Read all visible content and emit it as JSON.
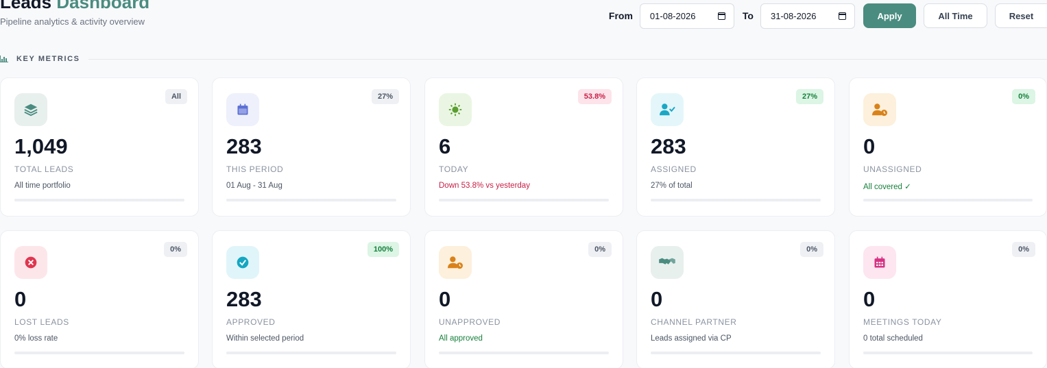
{
  "header": {
    "title_main": "Leads",
    "title_accent": "Dashboard",
    "subtitle": "Pipeline analytics & activity overview"
  },
  "filters": {
    "from_label": "From",
    "from_value": "01-08-2026",
    "to_label": "To",
    "to_value": "31-08-2026",
    "apply_label": "Apply",
    "all_time_label": "All Time",
    "reset_label": "Reset"
  },
  "section": {
    "title": "KEY METRICS"
  },
  "metrics": [
    {
      "value": "1,049",
      "label": "TOTAL LEADS",
      "desc": "All time portfolio",
      "badge": "All",
      "icon": "layers-icon",
      "icon_bg": "#e8f0ee",
      "icon_color": "#4a8c80",
      "badge_bg": "#eef0f4",
      "badge_color": "#4b5563"
    },
    {
      "value": "283",
      "label": "THIS PERIOD",
      "desc": "01 Aug - 31 Aug",
      "badge": "27%",
      "icon": "calendar-icon",
      "icon_bg": "#eef0fb",
      "icon_color": "#5b6fd6",
      "badge_bg": "#eef0f4",
      "badge_color": "#4b5563"
    },
    {
      "value": "6",
      "label": "TODAY",
      "desc": "Down 53.8% vs yesterday",
      "badge": "53.8%",
      "icon": "sun-icon",
      "icon_bg": "#eaf6e3",
      "icon_color": "#5a9e2f",
      "badge_bg": "#fde4ea",
      "badge_color": "#c81e45"
    },
    {
      "value": "283",
      "label": "ASSIGNED",
      "desc": "27% of total",
      "badge": "27%",
      "icon": "user-check-icon",
      "icon_bg": "#e4f6fa",
      "icon_color": "#1aa8c5",
      "badge_bg": "#dcf5e5",
      "badge_color": "#16803c"
    },
    {
      "value": "0",
      "label": "UNASSIGNED",
      "desc": "All covered ✓",
      "badge": "0%",
      "icon": "user-clock-icon",
      "icon_bg": "#fdf0dc",
      "icon_color": "#d9821a",
      "badge_bg": "#dcf5e5",
      "badge_color": "#16803c"
    },
    {
      "value": "0",
      "label": "LOST LEADS",
      "desc": "0% loss rate",
      "badge": "0%",
      "icon": "x-circle-icon",
      "icon_bg": "#fde6ea",
      "icon_color": "#e0364f",
      "badge_bg": "#eef0f4",
      "badge_color": "#4b5563"
    },
    {
      "value": "283",
      "label": "APPROVED",
      "desc": "Within selected period",
      "badge": "100%",
      "icon": "check-circle-icon",
      "icon_bg": "#e0f5fa",
      "icon_color": "#14a7c2",
      "badge_bg": "#dcf5e5",
      "badge_color": "#16803c"
    },
    {
      "value": "0",
      "label": "UNAPPROVED",
      "desc": "All approved",
      "badge": "0%",
      "icon": "user-clock-icon",
      "icon_bg": "#fdf0dc",
      "icon_color": "#d9821a",
      "badge_bg": "#eef0f4",
      "badge_color": "#4b5563"
    },
    {
      "value": "0",
      "label": "CHANNEL PARTNER",
      "desc": "Leads assigned via CP",
      "badge": "0%",
      "icon": "handshake-icon",
      "icon_bg": "#e8f0ee",
      "icon_color": "#4a8c80",
      "badge_bg": "#eef0f4",
      "badge_color": "#4b5563"
    },
    {
      "value": "0",
      "label": "MEETINGS TODAY",
      "desc": "0 total scheduled",
      "badge": "0%",
      "icon": "calendar-grid-icon",
      "icon_bg": "#fde6f0",
      "icon_color": "#d63384",
      "badge_bg": "#eef0f4",
      "badge_color": "#4b5563"
    }
  ]
}
